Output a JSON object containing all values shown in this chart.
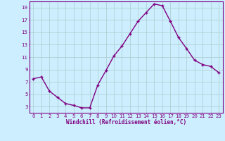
{
  "x": [
    0,
    1,
    2,
    3,
    4,
    5,
    6,
    7,
    8,
    9,
    10,
    11,
    12,
    13,
    14,
    15,
    16,
    17,
    18,
    19,
    20,
    21,
    22,
    23
  ],
  "y": [
    7.5,
    7.8,
    5.5,
    4.5,
    3.5,
    3.2,
    2.8,
    2.8,
    6.5,
    8.8,
    11.2,
    12.8,
    14.8,
    16.8,
    18.2,
    19.6,
    19.3,
    16.8,
    14.2,
    12.4,
    10.5,
    9.8,
    9.5,
    8.5
  ],
  "line_color": "#800080",
  "marker": "+",
  "marker_color": "#800080",
  "bg_color": "#cceeff",
  "grid_color": "#aacccc",
  "xlabel": "Windchill (Refroidissement éolien,°C)",
  "xlabel_color": "#800080",
  "tick_color": "#800080",
  "xlim": [
    -0.5,
    23.5
  ],
  "ylim": [
    2,
    20
  ],
  "yticks": [
    3,
    5,
    7,
    9,
    11,
    13,
    15,
    17,
    19
  ],
  "xticks": [
    0,
    1,
    2,
    3,
    4,
    5,
    6,
    7,
    8,
    9,
    10,
    11,
    12,
    13,
    14,
    15,
    16,
    17,
    18,
    19,
    20,
    21,
    22,
    23
  ],
  "spine_color": "#800080",
  "line_width": 1.0,
  "marker_size": 3
}
